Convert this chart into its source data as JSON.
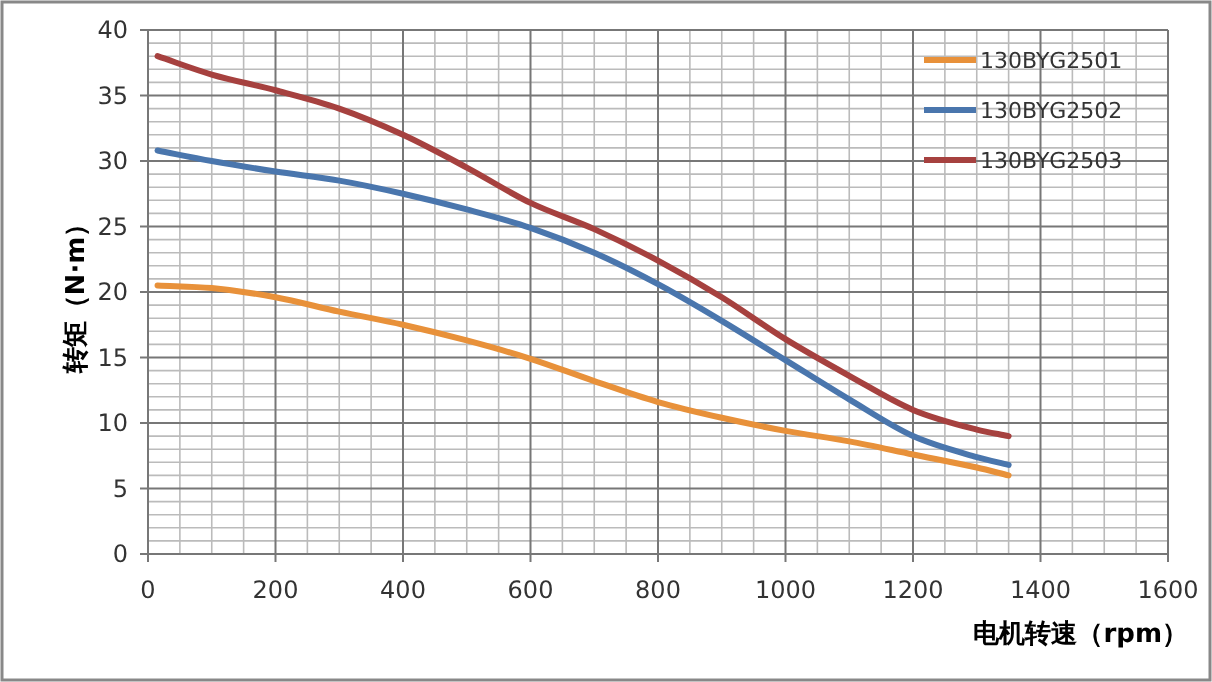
{
  "chart_data": {
    "type": "line",
    "xlabel": "电机转速（rpm）",
    "ylabel": "转矩（N·m）",
    "xlim": [
      0,
      1600
    ],
    "xticks": [
      0,
      200,
      400,
      600,
      800,
      1000,
      1200,
      1400,
      1600
    ],
    "ylim": [
      0,
      40
    ],
    "yticks": [
      0,
      5,
      10,
      15,
      20,
      25,
      30,
      35,
      40
    ],
    "grid": true,
    "legend": "top right",
    "marker": "none",
    "line_style": "solid",
    "x": [
      15,
      100,
      200,
      300,
      400,
      500,
      600,
      700,
      800,
      900,
      1000,
      1100,
      1200,
      1300,
      1350
    ],
    "series": [
      {
        "name": "130BYG2501",
        "color": "#e8913a",
        "values": [
          20.5,
          20.3,
          19.6,
          18.5,
          17.5,
          16.3,
          14.9,
          13.2,
          11.6,
          10.4,
          9.4,
          8.6,
          7.6,
          6.6,
          6.0
        ]
      },
      {
        "name": "130BYG2502",
        "color": "#4a76ad",
        "values": [
          30.8,
          30.0,
          29.2,
          28.5,
          27.5,
          26.3,
          24.9,
          23.0,
          20.6,
          17.8,
          14.8,
          11.8,
          9.0,
          7.4,
          6.8
        ]
      },
      {
        "name": "130BYG2503",
        "color": "#a6413f",
        "values": [
          38.0,
          36.6,
          35.4,
          34.0,
          32.0,
          29.5,
          26.8,
          24.8,
          22.4,
          19.6,
          16.4,
          13.6,
          11.0,
          9.5,
          9.0
        ]
      }
    ]
  }
}
